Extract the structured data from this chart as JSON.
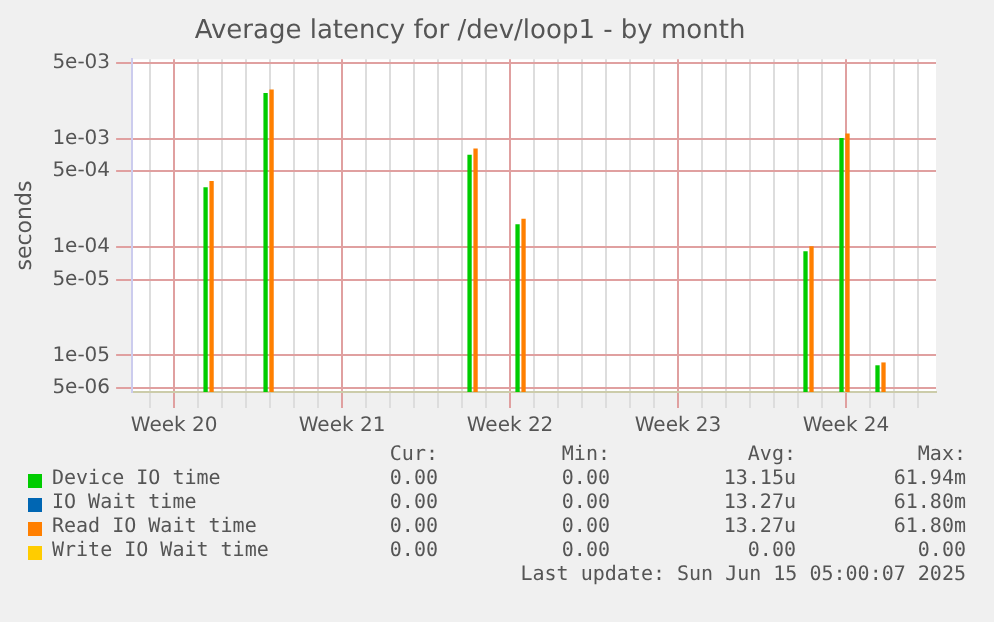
{
  "chart_data": {
    "type": "bar",
    "title": "Average latency for /dev/loop1 - by month",
    "ylabel": "seconds",
    "categories": [
      null,
      null,
      null,
      "Week 20",
      null,
      null,
      null,
      null,
      null,
      null,
      null,
      null,
      null,
      null,
      null,
      null,
      null,
      "Week 21",
      null,
      null,
      null,
      null,
      null,
      null,
      null,
      null,
      null,
      null,
      null,
      null,
      null,
      "Week 22",
      null,
      null,
      null,
      null,
      null,
      null,
      null,
      null,
      null,
      null,
      null,
      null,
      null,
      "Week 23",
      null,
      null,
      null,
      null,
      null,
      null,
      null,
      null,
      null,
      null,
      null,
      null,
      null,
      "Week 24",
      null,
      null,
      null,
      null,
      null,
      null,
      null
    ],
    "series": [
      {
        "name": "Device IO time",
        "color": "#00cc00",
        "values": [
          null,
          null,
          null,
          null,
          null,
          null,
          0.00035,
          null,
          null,
          null,
          null,
          0.0026,
          null,
          null,
          null,
          null,
          null,
          null,
          null,
          null,
          null,
          null,
          null,
          null,
          null,
          null,
          null,
          null,
          0.0007,
          null,
          null,
          null,
          0.00016,
          null,
          null,
          null,
          null,
          null,
          null,
          null,
          null,
          null,
          null,
          null,
          null,
          null,
          null,
          null,
          null,
          null,
          null,
          null,
          null,
          null,
          null,
          null,
          9e-05,
          null,
          null,
          0.001,
          null,
          null,
          8e-06,
          null,
          null,
          null,
          null
        ]
      },
      {
        "name": "IO Wait time",
        "color": "#0066b3",
        "values": [
          null,
          null,
          null,
          null,
          null,
          null,
          null,
          null,
          null,
          null,
          null,
          null,
          null,
          null,
          null,
          null,
          null,
          null,
          null,
          null,
          null,
          null,
          null,
          null,
          null,
          null,
          null,
          null,
          null,
          null,
          null,
          null,
          null,
          null,
          null,
          null,
          null,
          null,
          null,
          null,
          null,
          null,
          null,
          null,
          null,
          null,
          null,
          null,
          null,
          null,
          null,
          null,
          null,
          null,
          null,
          null,
          null,
          null,
          null,
          null,
          null,
          null,
          null,
          null,
          null,
          null,
          null
        ]
      },
      {
        "name": "Read IO Wait time",
        "color": "#ff7f00",
        "values": [
          null,
          null,
          null,
          null,
          null,
          null,
          0.0004,
          null,
          null,
          null,
          null,
          0.0028,
          null,
          null,
          null,
          null,
          null,
          null,
          null,
          null,
          null,
          null,
          null,
          null,
          null,
          null,
          null,
          null,
          0.0008,
          null,
          null,
          null,
          0.00018,
          null,
          null,
          null,
          null,
          null,
          null,
          null,
          null,
          null,
          null,
          null,
          null,
          null,
          null,
          null,
          null,
          null,
          null,
          null,
          null,
          null,
          null,
          null,
          0.0001,
          null,
          null,
          0.0011,
          null,
          null,
          8.5e-06,
          null,
          null,
          null,
          null
        ]
      },
      {
        "name": "Write IO Wait time",
        "color": "#ffcc00",
        "values": [
          null,
          null,
          null,
          null,
          null,
          null,
          null,
          null,
          null,
          null,
          null,
          null,
          null,
          null,
          null,
          null,
          null,
          null,
          null,
          null,
          null,
          null,
          null,
          null,
          null,
          null,
          null,
          null,
          null,
          null,
          null,
          null,
          null,
          null,
          null,
          null,
          null,
          null,
          null,
          null,
          null,
          null,
          null,
          null,
          null,
          null,
          null,
          null,
          null,
          null,
          null,
          null,
          null,
          null,
          null,
          null,
          null,
          null,
          null,
          null,
          null,
          null,
          null,
          null,
          null,
          null,
          null
        ]
      }
    ],
    "log": "y",
    "ylim": [
      4.6e-06,
      0.0054
    ],
    "yticks": [
      {
        "value": 5e-06,
        "label": "5e-06"
      },
      {
        "value": 1e-05,
        "label": "1e-05"
      },
      {
        "value": 5e-05,
        "label": "5e-05"
      },
      {
        "value": 0.0001,
        "label": "1e-04"
      },
      {
        "value": 0.0005,
        "label": "5e-04"
      },
      {
        "value": 0.001,
        "label": "1e-03"
      },
      {
        "value": 0.005,
        "label": "5e-03"
      }
    ],
    "grid": true,
    "legend": "bottom",
    "annotations": [
      "Cur:",
      "Min:",
      "Avg:",
      "Max:",
      "0.00",
      "0.00",
      "13.15u",
      "61.94m",
      "0.00",
      "0.00",
      "13.27u",
      "61.80m",
      "0.00",
      "0.00",
      "13.27u",
      "61.80m",
      "0.00",
      "0.00",
      "0.00",
      "0.00",
      "Last update: Sun Jun 15 05:00:07 2025"
    ]
  }
}
